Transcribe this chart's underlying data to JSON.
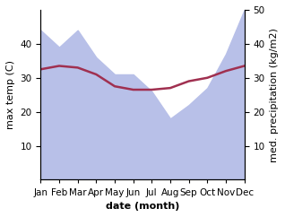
{
  "months": [
    "Jan",
    "Feb",
    "Mar",
    "Apr",
    "May",
    "Jun",
    "Jul",
    "Aug",
    "Sep",
    "Oct",
    "Nov",
    "Dec"
  ],
  "month_indices": [
    0,
    1,
    2,
    3,
    4,
    5,
    6,
    7,
    8,
    9,
    10,
    11
  ],
  "max_temp": [
    32.5,
    33.5,
    33.0,
    31.0,
    27.5,
    26.5,
    26.5,
    27.0,
    29.0,
    30.0,
    32.0,
    33.5
  ],
  "precipitation": [
    44,
    39,
    44,
    36,
    31,
    31,
    26,
    18,
    22,
    27,
    37,
    50
  ],
  "temp_color": "#a03050",
  "precip_fill_color": "#b8c0e8",
  "temp_ylim": [
    0,
    50
  ],
  "precip_ylim": [
    0,
    50
  ],
  "temp_yticks": [
    10,
    20,
    30,
    40
  ],
  "precip_yticks": [
    10,
    20,
    30,
    40,
    50
  ],
  "xlabel": "date (month)",
  "ylabel_left": "max temp (C)",
  "ylabel_right": "med. precipitation (kg/m2)",
  "label_fontsize": 8,
  "tick_fontsize": 7.5
}
